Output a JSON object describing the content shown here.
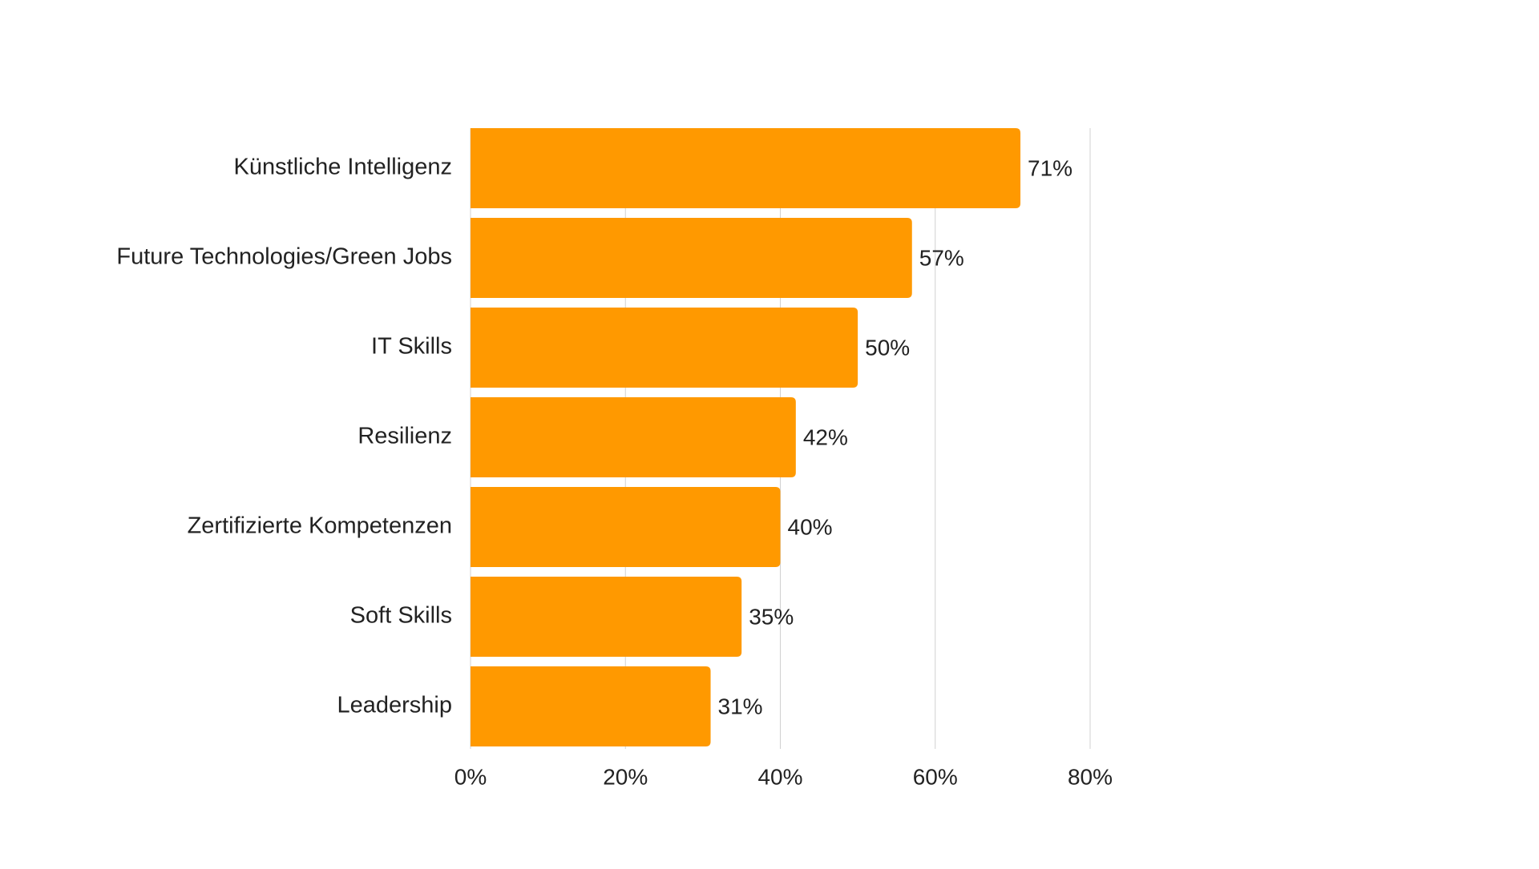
{
  "chart_data": {
    "type": "bar",
    "orientation": "horizontal",
    "categories": [
      "Künstliche Intelligenz",
      "Future Technologies/Green Jobs",
      "IT Skills",
      "Resilienz",
      "Zertifizierte Kompetenzen",
      "Soft Skills",
      "Leadership"
    ],
    "values": [
      71,
      57,
      50,
      42,
      40,
      35,
      31
    ],
    "value_labels": [
      "71%",
      "57%",
      "50%",
      "42%",
      "40%",
      "35%",
      "31%"
    ],
    "xlim": [
      0,
      80
    ],
    "xticks": [
      0,
      20,
      40,
      60,
      80
    ],
    "xtick_labels": [
      "0%",
      "20%",
      "40%",
      "60%",
      "80%"
    ],
    "title": "",
    "xlabel": "",
    "ylabel": "",
    "grid": true,
    "bar_color": "#FF9900"
  }
}
